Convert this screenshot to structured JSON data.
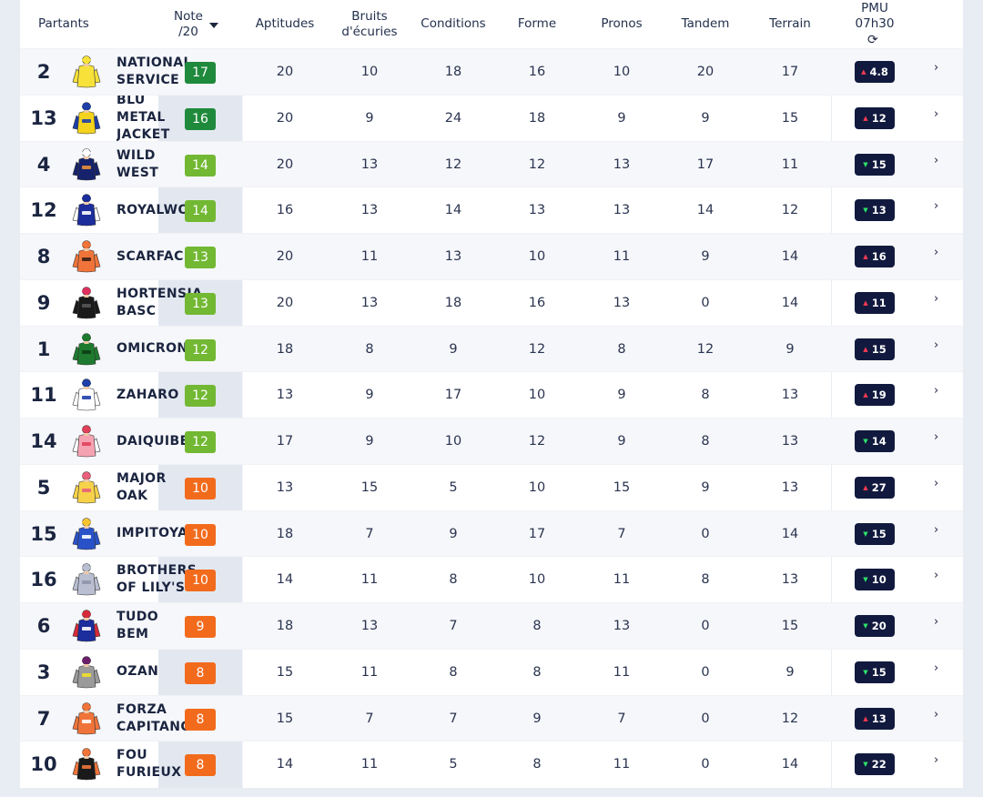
{
  "header": {
    "partants": "Partants",
    "note": "Note\n/20",
    "aptitudes": "Aptitudes",
    "bruits": "Bruits\nd'écuries",
    "conditions": "Conditions",
    "forme": "Forme",
    "pronos": "Pronos",
    "tandem": "Tandem",
    "terrain": "Terrain",
    "pmu": "PMU\n07h30"
  },
  "colors": {
    "note_dark_green": "#1f8a3c",
    "note_light_green": "#72b833",
    "note_orange": "#f26b1d",
    "pmu_bg": "#111a3e"
  },
  "rows": [
    {
      "num": "2",
      "name": "NATIONAL\nSERVICE",
      "note": "17",
      "note_color": "#1f8a3c",
      "aptitudes": "20",
      "bruits": "10",
      "conditions": "18",
      "forme": "16",
      "pronos": "10",
      "tandem": "20",
      "terrain": "17",
      "pmu": "4.8",
      "trend": "up",
      "silk": {
        "body": "#f7e23a",
        "sleeve": "#f7e23a",
        "cap": "#f7e23a",
        "accent": "#f7e23a"
      }
    },
    {
      "num": "13",
      "name": "BLU\nMETAL\nJACKET",
      "note": "16",
      "note_color": "#1f8a3c",
      "aptitudes": "20",
      "bruits": "9",
      "conditions": "24",
      "forme": "18",
      "pronos": "9",
      "tandem": "9",
      "terrain": "15",
      "pmu": "12",
      "trend": "up",
      "silk": {
        "body": "#f3d31d",
        "sleeve": "#1e3fa8",
        "cap": "#1e3fa8",
        "accent": "#1e3fa8"
      }
    },
    {
      "num": "4",
      "name": "WILD\nWEST",
      "note": "14",
      "note_color": "#72b833",
      "aptitudes": "20",
      "bruits": "13",
      "conditions": "12",
      "forme": "12",
      "pronos": "13",
      "tandem": "17",
      "terrain": "11",
      "pmu": "15",
      "trend": "down",
      "silk": {
        "body": "#16226b",
        "sleeve": "#16226b",
        "cap": "#ffffff",
        "accent": "#e8903a"
      }
    },
    {
      "num": "12",
      "name": "ROYALWOOD",
      "note": "14",
      "note_color": "#72b833",
      "aptitudes": "16",
      "bruits": "13",
      "conditions": "14",
      "forme": "13",
      "pronos": "13",
      "tandem": "14",
      "terrain": "12",
      "pmu": "13",
      "trend": "down",
      "silk": {
        "body": "#1c2d9c",
        "sleeve": "#ffffff",
        "cap": "#1c2d9c",
        "accent": "#ffffff"
      }
    },
    {
      "num": "8",
      "name": "SCARFACE",
      "note": "13",
      "note_color": "#72b833",
      "aptitudes": "20",
      "bruits": "11",
      "conditions": "13",
      "forme": "10",
      "pronos": "11",
      "tandem": "9",
      "terrain": "14",
      "pmu": "16",
      "trend": "up",
      "silk": {
        "body": "#f0743a",
        "sleeve": "#f0743a",
        "cap": "#f0743a",
        "accent": "#3a2014"
      }
    },
    {
      "num": "9",
      "name": "HORTENSIA\nBASC",
      "note": "13",
      "note_color": "#72b833",
      "aptitudes": "20",
      "bruits": "13",
      "conditions": "18",
      "forme": "16",
      "pronos": "13",
      "tandem": "0",
      "terrain": "14",
      "pmu": "11",
      "trend": "up",
      "silk": {
        "body": "#1a1a1a",
        "sleeve": "#1a1a1a",
        "cap": "#e03060",
        "accent": "#555555"
      }
    },
    {
      "num": "1",
      "name": "OMICRONE",
      "note": "12",
      "note_color": "#72b833",
      "aptitudes": "18",
      "bruits": "8",
      "conditions": "9",
      "forme": "12",
      "pronos": "8",
      "tandem": "12",
      "terrain": "9",
      "pmu": "15",
      "trend": "up",
      "silk": {
        "body": "#1e7a2e",
        "sleeve": "#1e7a2e",
        "cap": "#1e7a2e",
        "accent": "#0c3d16"
      }
    },
    {
      "num": "11",
      "name": "ZAHARO",
      "note": "12",
      "note_color": "#72b833",
      "aptitudes": "13",
      "bruits": "9",
      "conditions": "17",
      "forme": "10",
      "pronos": "9",
      "tandem": "8",
      "terrain": "13",
      "pmu": "19",
      "trend": "up",
      "silk": {
        "body": "#ffffff",
        "sleeve": "#ffffff",
        "cap": "#1e3fa8",
        "accent": "#1e3fa8"
      }
    },
    {
      "num": "14",
      "name": "DAIQUIBEN",
      "note": "12",
      "note_color": "#72b833",
      "aptitudes": "17",
      "bruits": "9",
      "conditions": "10",
      "forme": "12",
      "pronos": "9",
      "tandem": "8",
      "terrain": "13",
      "pmu": "14",
      "trend": "down",
      "silk": {
        "body": "#f5a3b3",
        "sleeve": "#ffffff",
        "cap": "#e0405a",
        "accent": "#e0405a"
      }
    },
    {
      "num": "5",
      "name": "MAJOR\nOAK",
      "note": "10",
      "note_color": "#f26b1d",
      "aptitudes": "13",
      "bruits": "15",
      "conditions": "5",
      "forme": "10",
      "pronos": "15",
      "tandem": "9",
      "terrain": "13",
      "pmu": "27",
      "trend": "up",
      "silk": {
        "body": "#f6d24a",
        "sleeve": "#f6d24a",
        "cap": "#e8617c",
        "accent": "#e8617c"
      }
    },
    {
      "num": "15",
      "name": "IMPITOYABLE",
      "note": "10",
      "note_color": "#f26b1d",
      "aptitudes": "18",
      "bruits": "7",
      "conditions": "9",
      "forme": "17",
      "pronos": "7",
      "tandem": "0",
      "terrain": "14",
      "pmu": "15",
      "trend": "down",
      "silk": {
        "body": "#2a52c8",
        "sleeve": "#2a52c8",
        "cap": "#f4c430",
        "accent": "#ffffff"
      }
    },
    {
      "num": "16",
      "name": "BROTHERS\nOF LILY'S",
      "note": "10",
      "note_color": "#f26b1d",
      "aptitudes": "14",
      "bruits": "11",
      "conditions": "8",
      "forme": "10",
      "pronos": "11",
      "tandem": "8",
      "terrain": "13",
      "pmu": "10",
      "trend": "down",
      "silk": {
        "body": "#b9bfd1",
        "sleeve": "#b9bfd1",
        "cap": "#b9bfd1",
        "accent": "#8e94a8"
      }
    },
    {
      "num": "6",
      "name": "TUDO\nBEM",
      "note": "9",
      "note_color": "#f26b1d",
      "aptitudes": "18",
      "bruits": "13",
      "conditions": "7",
      "forme": "8",
      "pronos": "13",
      "tandem": "0",
      "terrain": "15",
      "pmu": "20",
      "trend": "down",
      "silk": {
        "body": "#1c2d9c",
        "sleeve": "#d62b3b",
        "cap": "#d62b3b",
        "accent": "#ffffff"
      }
    },
    {
      "num": "3",
      "name": "OZAN",
      "note": "8",
      "note_color": "#f26b1d",
      "aptitudes": "15",
      "bruits": "11",
      "conditions": "8",
      "forme": "8",
      "pronos": "11",
      "tandem": "0",
      "terrain": "9",
      "pmu": "15",
      "trend": "down",
      "silk": {
        "body": "#9a9a9a",
        "sleeve": "#9a9a9a",
        "cap": "#6b1f6b",
        "accent": "#f3e02a"
      }
    },
    {
      "num": "7",
      "name": "FORZA\nCAPITANO",
      "note": "8",
      "note_color": "#f26b1d",
      "aptitudes": "15",
      "bruits": "7",
      "conditions": "7",
      "forme": "9",
      "pronos": "7",
      "tandem": "0",
      "terrain": "12",
      "pmu": "13",
      "trend": "up",
      "silk": {
        "body": "#f0743a",
        "sleeve": "#f0743a",
        "cap": "#f0743a",
        "accent": "#ffffff"
      }
    },
    {
      "num": "10",
      "name": "FOU\nFURIEUX",
      "note": "8",
      "note_color": "#f26b1d",
      "aptitudes": "14",
      "bruits": "11",
      "conditions": "5",
      "forme": "8",
      "pronos": "11",
      "tandem": "0",
      "terrain": "14",
      "pmu": "22",
      "trend": "down",
      "silk": {
        "body": "#1a1a1a",
        "sleeve": "#f0743a",
        "cap": "#f0743a",
        "accent": "#f0743a"
      }
    }
  ]
}
